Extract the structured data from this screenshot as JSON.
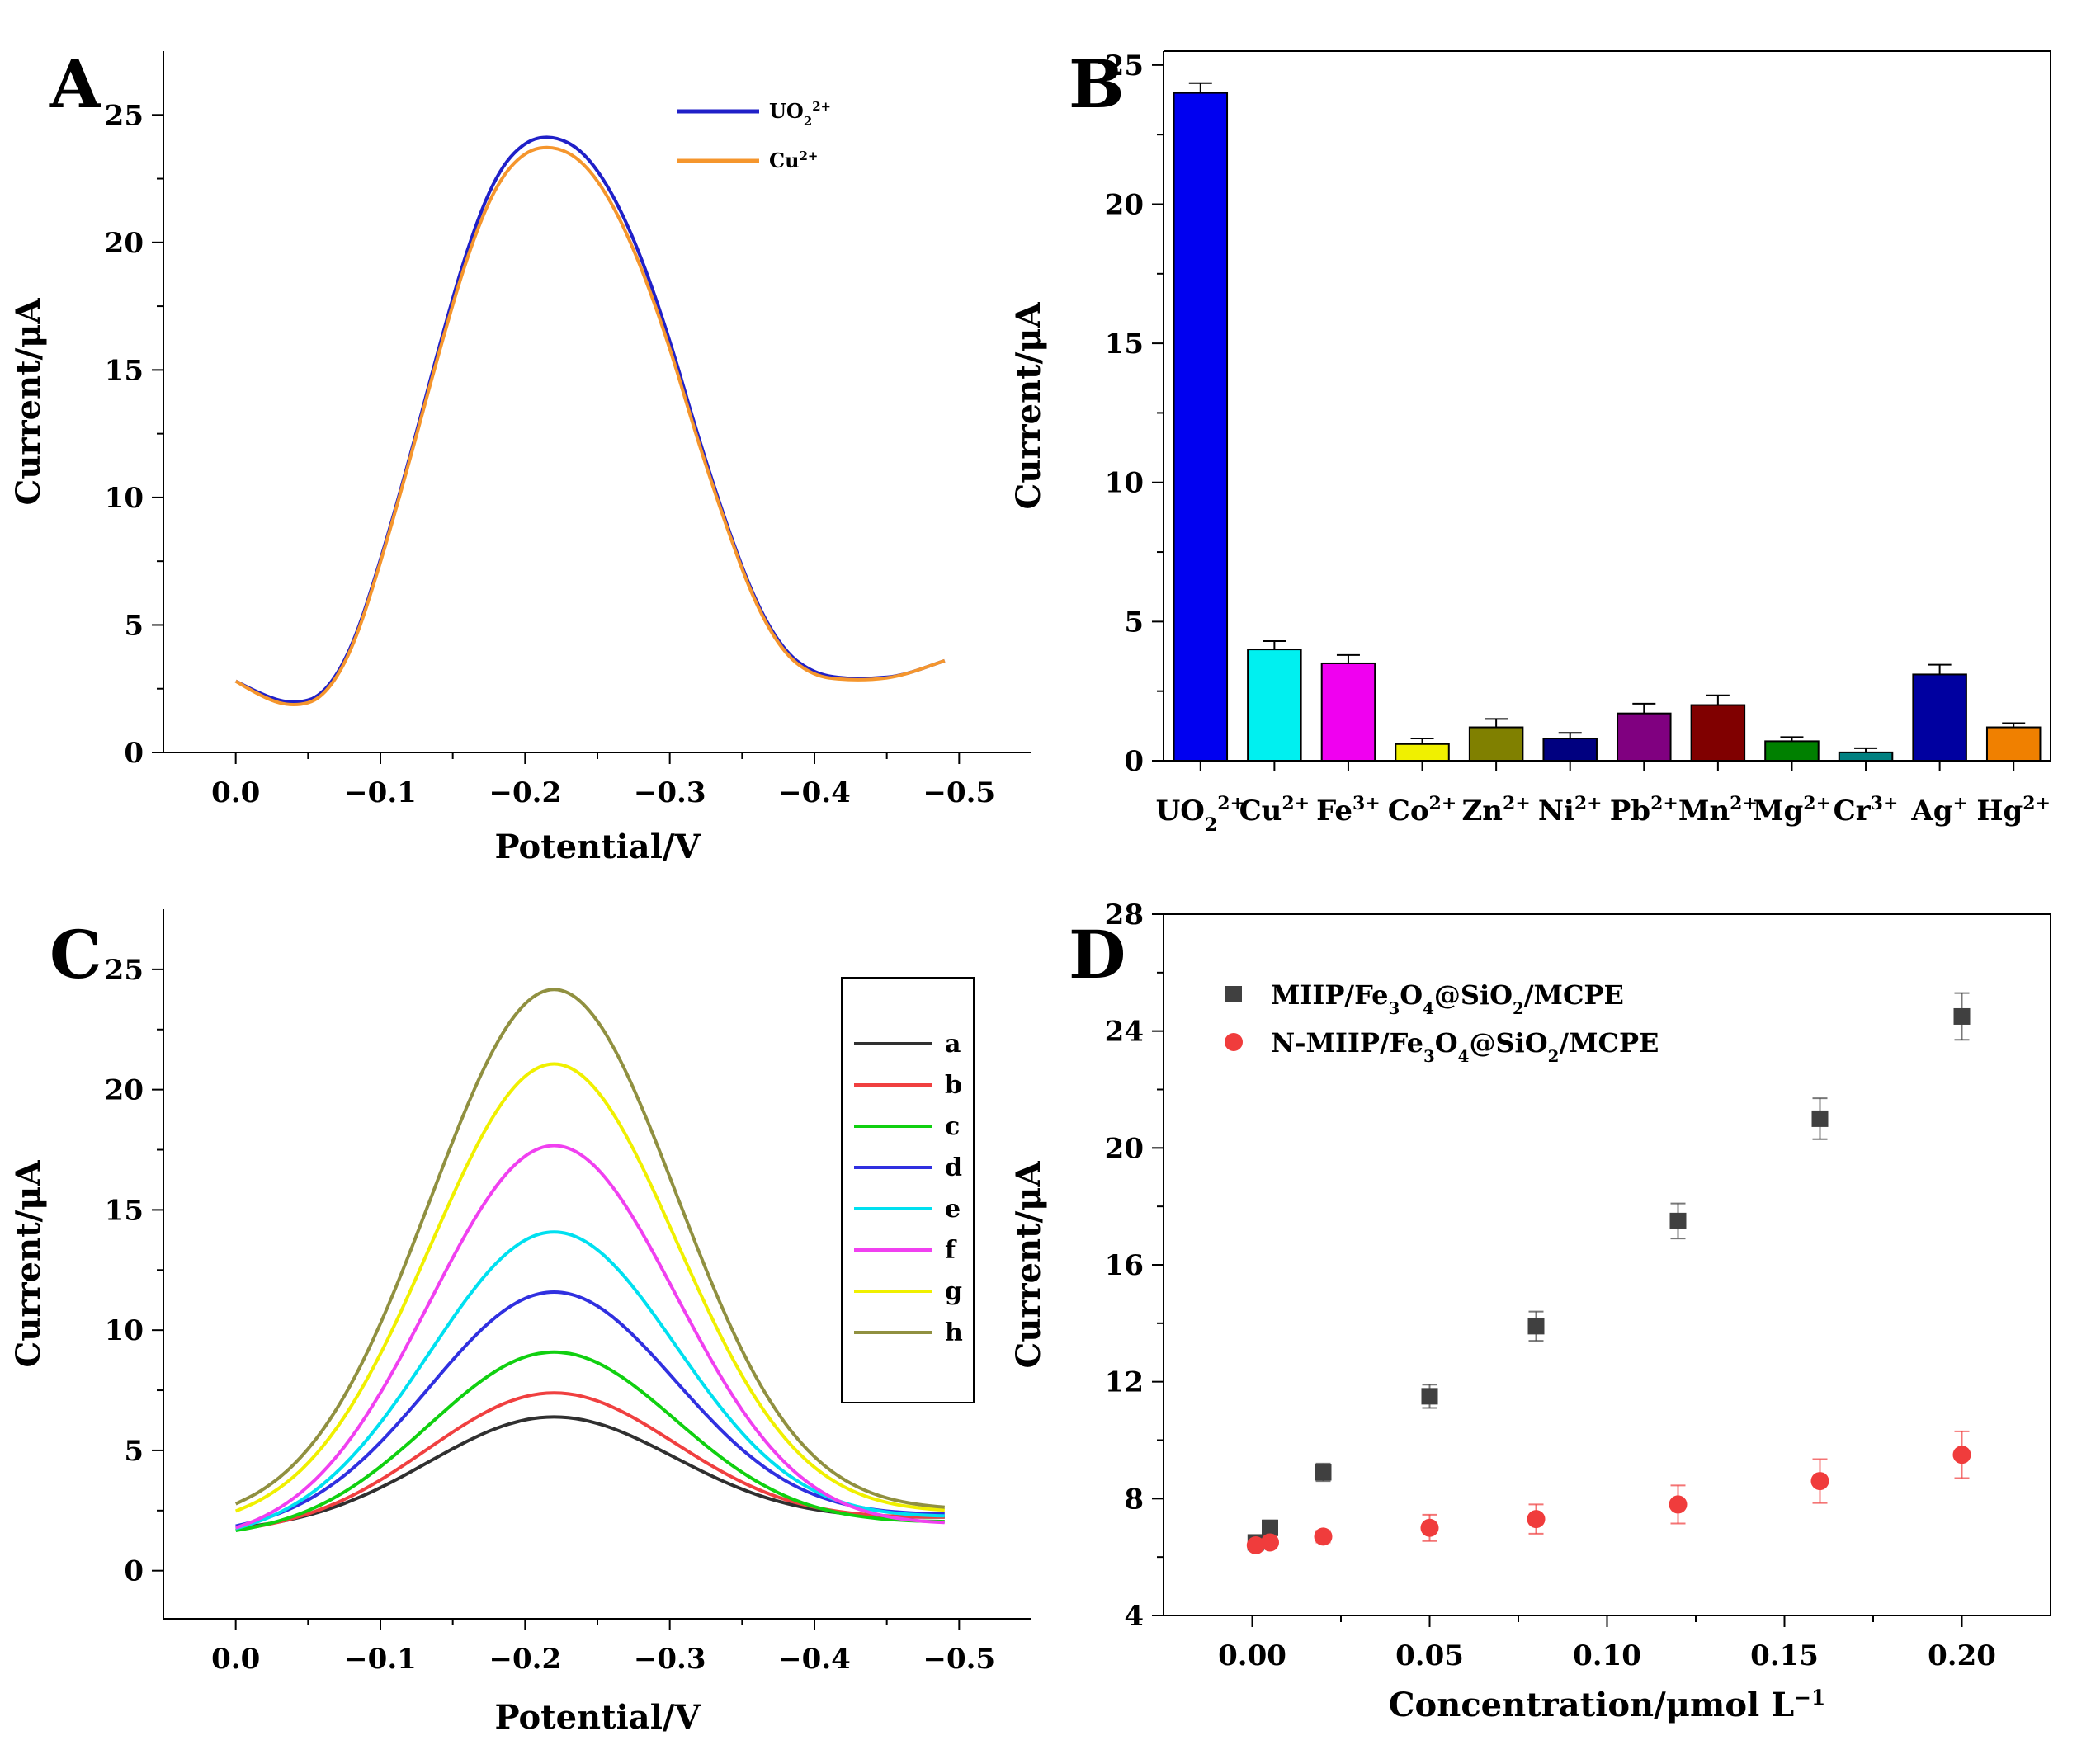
{
  "chart_data": [
    {
      "panel": "A",
      "type": "line",
      "xlabel": "Potential/V",
      "ylabel": "Current/μA",
      "xlim": [
        0.05,
        -0.55
      ],
      "ylim": [
        0,
        27.5
      ],
      "xticks": [
        0.0,
        -0.1,
        -0.2,
        -0.3,
        -0.4,
        -0.5
      ],
      "xtick_labels": [
        "0.0",
        "−0.1",
        "−0.2",
        "−0.3",
        "−0.4",
        "−0.5"
      ],
      "yticks": [
        0,
        5,
        10,
        15,
        20,
        25
      ],
      "ytick_labels": [
        "0",
        "5",
        "10",
        "15",
        "20",
        "25"
      ],
      "legend": {
        "placement": "top-right",
        "labels": [
          "UO₂²⁺",
          "Cu²⁺"
        ]
      },
      "series": [
        {
          "name": "UO₂²⁺",
          "color": "#2020c8",
          "peak": 24.2,
          "center": -0.22,
          "x": [
            0.0,
            -0.02,
            -0.04,
            -0.06,
            -0.08,
            -0.1,
            -0.12,
            -0.14,
            -0.16,
            -0.18,
            -0.2,
            -0.22,
            -0.24,
            -0.26,
            -0.28,
            -0.3,
            -0.32,
            -0.34,
            -0.36,
            -0.38,
            -0.4,
            -0.42,
            -0.44,
            -0.46,
            -0.49
          ],
          "y": [
            2.8,
            2.2,
            1.9,
            2.2,
            4.0,
            7.5,
            11.5,
            15.8,
            19.8,
            22.7,
            24.0,
            24.2,
            23.6,
            22.0,
            19.5,
            16.2,
            12.3,
            8.8,
            5.8,
            3.9,
            3.1,
            2.9,
            2.9,
            3.0,
            3.6
          ]
        },
        {
          "name": "Cu²⁺",
          "color": "#f5962d",
          "peak": 23.8,
          "center": -0.22,
          "x": [
            0.0,
            -0.02,
            -0.04,
            -0.06,
            -0.08,
            -0.1,
            -0.12,
            -0.14,
            -0.16,
            -0.18,
            -0.2,
            -0.22,
            -0.24,
            -0.26,
            -0.28,
            -0.3,
            -0.32,
            -0.34,
            -0.36,
            -0.38,
            -0.4,
            -0.42,
            -0.44,
            -0.46,
            -0.49
          ],
          "y": [
            2.8,
            2.1,
            1.8,
            2.1,
            3.9,
            7.4,
            11.4,
            15.6,
            19.5,
            22.3,
            23.6,
            23.8,
            23.2,
            21.6,
            19.1,
            15.9,
            12.1,
            8.7,
            5.7,
            3.8,
            3.0,
            2.85,
            2.85,
            3.0,
            3.6
          ]
        }
      ]
    },
    {
      "panel": "B",
      "type": "bar",
      "xlabel": "",
      "ylabel": "Current/μA",
      "ylim": [
        0,
        25.5
      ],
      "yticks": [
        0,
        5,
        10,
        15,
        20,
        25
      ],
      "ytick_labels": [
        "0",
        "5",
        "10",
        "15",
        "20",
        "25"
      ],
      "categories": [
        "UO",
        "Cu",
        "Fe",
        "Co",
        "Zn",
        "Ni",
        "Pb",
        "Mn",
        "Mg",
        "Cr",
        "Ag",
        "Hg"
      ],
      "category_sub": [
        "2",
        "",
        "",
        "",
        "",
        "",
        "",
        "",
        "",
        "",
        "",
        ""
      ],
      "category_sup": [
        "2+",
        "2+",
        "3+",
        "2+",
        "2+",
        "2+",
        "2+",
        "2+",
        "2+",
        "3+",
        "+",
        "2+"
      ],
      "values": [
        24.0,
        4.0,
        3.5,
        0.6,
        1.2,
        0.8,
        1.7,
        2.0,
        0.7,
        0.3,
        3.1,
        1.2
      ],
      "errors": [
        0.35,
        0.3,
        0.3,
        0.2,
        0.3,
        0.2,
        0.35,
        0.35,
        0.15,
        0.15,
        0.35,
        0.15
      ],
      "colors": [
        "#0000f0",
        "#00f0f0",
        "#f000f0",
        "#f0f000",
        "#808000",
        "#000080",
        "#800080",
        "#800000",
        "#008000",
        "#008080",
        "#0000a0",
        "#f08000"
      ]
    },
    {
      "panel": "C",
      "type": "line",
      "xlabel": "Potential/V",
      "ylabel": "Current/μA",
      "xlim": [
        0.05,
        -0.55
      ],
      "ylim": [
        -2.0,
        27.5
      ],
      "xticks": [
        0.0,
        -0.1,
        -0.2,
        -0.3,
        -0.4,
        -0.5
      ],
      "xtick_labels": [
        "0.0",
        "−0.1",
        "−0.2",
        "−0.3",
        "−0.4",
        "−0.5"
      ],
      "yticks": [
        0,
        5,
        10,
        15,
        20,
        25
      ],
      "ytick_labels": [
        "0",
        "5",
        "10",
        "15",
        "20",
        "25"
      ],
      "legend": {
        "placement": "top-right",
        "labels": [
          "a",
          "b",
          "c",
          "d",
          "e",
          "f",
          "g",
          "h"
        ]
      },
      "series": [
        {
          "name": "a",
          "color": "#303030",
          "peak": 6.4,
          "base_left": 1.6,
          "base_right": 2.2
        },
        {
          "name": "b",
          "color": "#f04040",
          "peak": 7.4,
          "base_left": 1.5,
          "base_right": 2.2
        },
        {
          "name": "c",
          "color": "#10d010",
          "peak": 9.1,
          "base_left": 1.4,
          "base_right": 2.0
        },
        {
          "name": "d",
          "color": "#3030e0",
          "peak": 11.6,
          "base_left": 1.5,
          "base_right": 2.3
        },
        {
          "name": "e",
          "color": "#00e0f0",
          "peak": 14.1,
          "base_left": 1.3,
          "base_right": 2.2
        },
        {
          "name": "f",
          "color": "#f040f0",
          "peak": 17.7,
          "base_left": 1.2,
          "base_right": 1.9
        },
        {
          "name": "g",
          "color": "#f0f000",
          "peak": 21.1,
          "base_left": 1.8,
          "base_right": 2.4
        },
        {
          "name": "h",
          "color": "#909040",
          "peak": 24.2,
          "base_left": 2.0,
          "base_right": 2.5
        }
      ]
    },
    {
      "panel": "D",
      "type": "scatter",
      "xlabel": "Concentration/μmol L⁻¹",
      "ylabel": "Current/μA",
      "xlim": [
        -0.025,
        0.225
      ],
      "ylim": [
        4,
        28
      ],
      "xticks": [
        0.0,
        0.05,
        0.1,
        0.15,
        0.2
      ],
      "xtick_labels": [
        "0.00",
        "0.05",
        "0.10",
        "0.15",
        "0.20"
      ],
      "yticks": [
        4,
        8,
        12,
        16,
        20,
        24,
        28
      ],
      "ytick_labels": [
        "4",
        "8",
        "12",
        "16",
        "20",
        "24",
        "28"
      ],
      "legend": {
        "placement": "top-left",
        "labels": [
          "MIIP/Fe₃O₄@SiO₂/MCPE",
          "N-MIIP/Fe₃O₄@SiO₂/MCPE"
        ]
      },
      "series": [
        {
          "name": "MIIP/Fe₃O₄@SiO₂/MCPE",
          "marker": "square",
          "color": "#404040",
          "x": [
            0.001,
            0.005,
            0.02,
            0.05,
            0.08,
            0.12,
            0.16,
            0.2
          ],
          "y": [
            6.5,
            7.0,
            8.9,
            11.5,
            13.9,
            17.5,
            21.0,
            24.5
          ],
          "errors": [
            0.2,
            0.25,
            0.3,
            0.4,
            0.5,
            0.6,
            0.7,
            0.8
          ]
        },
        {
          "name": "N-MIIP/Fe₃O₄@SiO₂/MCPE",
          "marker": "circle",
          "color": "#f03c3c",
          "x": [
            0.001,
            0.005,
            0.02,
            0.05,
            0.08,
            0.12,
            0.16,
            0.2
          ],
          "y": [
            6.4,
            6.5,
            6.7,
            7.0,
            7.3,
            7.8,
            8.6,
            9.5
          ],
          "errors": [
            0.15,
            0.2,
            0.2,
            0.45,
            0.5,
            0.65,
            0.75,
            0.8
          ]
        }
      ]
    }
  ]
}
